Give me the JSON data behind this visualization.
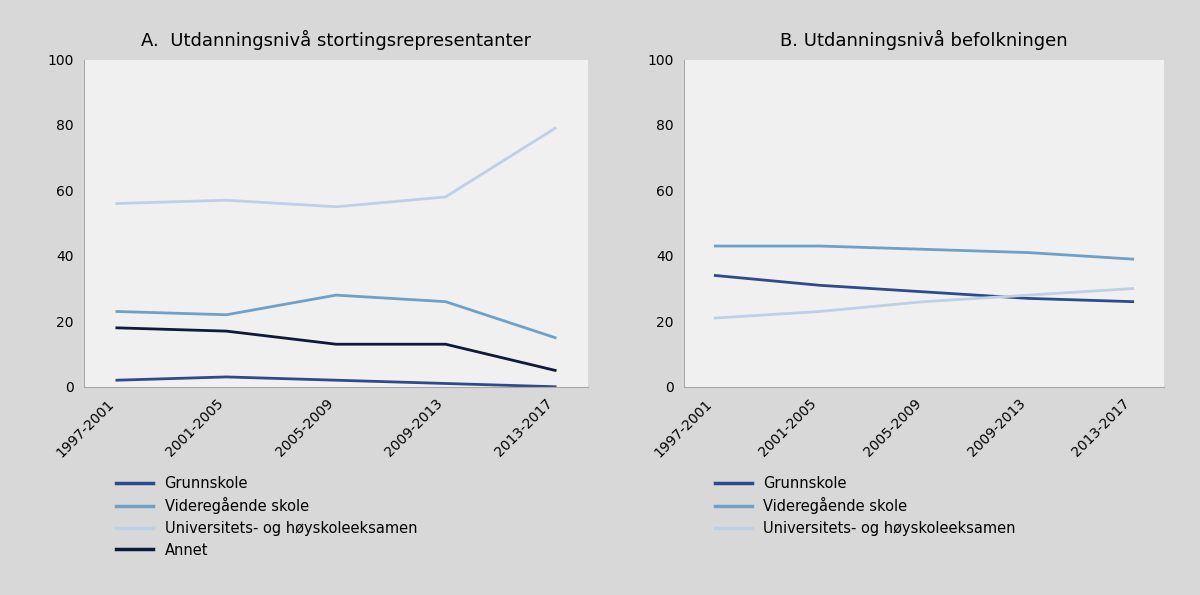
{
  "x_labels": [
    "1997-2001",
    "2001-2005",
    "2005-2009",
    "2009-2013",
    "2013-2017"
  ],
  "panel_a_title": "A.  Utdanningsnivå stortingsrepresentanter",
  "panel_b_title": "B. Utdanningsnivå befolkningen",
  "panel_a": {
    "grunnskole": [
      2,
      3,
      2,
      1,
      0
    ],
    "videregaende": [
      23,
      22,
      28,
      26,
      15
    ],
    "universitet": [
      56,
      57,
      55,
      58,
      79
    ],
    "annet": [
      18,
      17,
      13,
      13,
      5
    ]
  },
  "panel_b": {
    "grunnskole": [
      34,
      31,
      29,
      27,
      26
    ],
    "videregaende": [
      43,
      43,
      42,
      41,
      39
    ],
    "universitet": [
      21,
      23,
      26,
      28,
      30
    ]
  },
  "color_grunnskole": "#2e4a8c",
  "color_videregaende": "#6fa0c8",
  "color_universitet": "#bdd0e8",
  "color_annet": "#0d1a3a",
  "ylim": [
    0,
    100
  ],
  "yticks": [
    0,
    20,
    40,
    60,
    80,
    100
  ],
  "figure_bg_color": "#d8d8d8",
  "axes_bg_color": "#f0f0f0",
  "legend_a": [
    "Grunnskole",
    "Videregående skole",
    "Universitets- og høyskoleeksamen",
    "Annet"
  ],
  "legend_b": [
    "Grunnskole",
    "Videregående skole",
    "Universitets- og høyskoleeksamen"
  ],
  "line_width": 2.0
}
